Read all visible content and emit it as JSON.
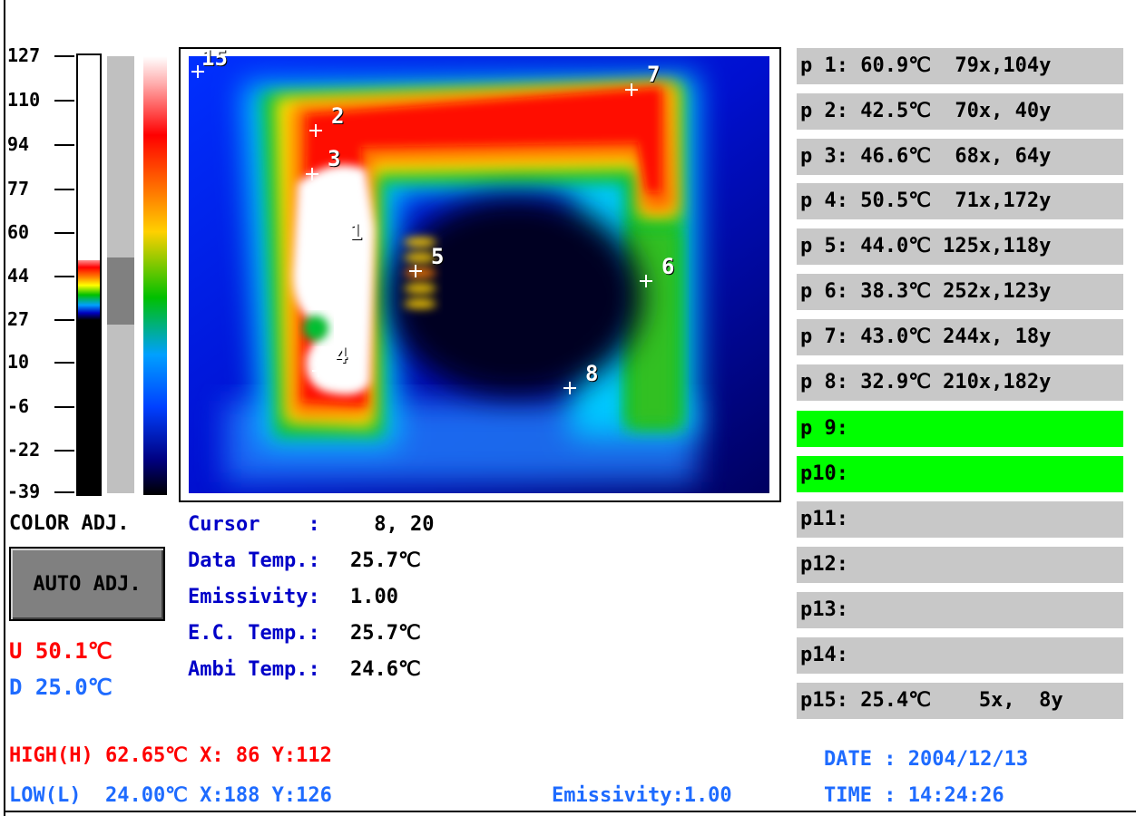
{
  "scale": {
    "ticks": [
      "127",
      "110",
      "94",
      "77",
      "60",
      "44",
      "27",
      "10",
      "-6",
      "-22",
      "-39"
    ]
  },
  "left_panel": {
    "color_adj_label": "COLOR ADJ.",
    "auto_adj_label": "AUTO ADJ.",
    "upper": "U 50.1℃",
    "lower": "D 25.0℃"
  },
  "thermal_points": [
    "1",
    "2",
    "3",
    "4",
    "5",
    "6",
    "7",
    "8",
    "15"
  ],
  "info": {
    "cursor_label": "Cursor    :",
    "cursor_value": " 8, 20",
    "data_temp_label": "Data Temp.:",
    "data_temp_value": "25.7℃",
    "emissivity_label": "Emissivity:",
    "emissivity_value": "1.00",
    "ec_temp_label": "E.C. Temp.:",
    "ec_temp_value": "25.7℃",
    "ambi_temp_label": "Ambi Temp.:",
    "ambi_temp_value": "24.6℃"
  },
  "points": [
    {
      "label": "p 1: 60.9℃  79x,104y",
      "active": false
    },
    {
      "label": "p 2: 42.5℃  70x, 40y",
      "active": false
    },
    {
      "label": "p 3: 46.6℃  68x, 64y",
      "active": false
    },
    {
      "label": "p 4: 50.5℃  71x,172y",
      "active": false
    },
    {
      "label": "p 5: 44.0℃ 125x,118y",
      "active": false
    },
    {
      "label": "p 6: 38.3℃ 252x,123y",
      "active": false
    },
    {
      "label": "p 7: 43.0℃ 244x, 18y",
      "active": false
    },
    {
      "label": "p 8: 32.9℃ 210x,182y",
      "active": false
    },
    {
      "label": "p 9:",
      "active": true
    },
    {
      "label": "p10:",
      "active": true
    },
    {
      "label": "p11:",
      "active": false
    },
    {
      "label": "p12:",
      "active": false
    },
    {
      "label": "p13:",
      "active": false
    },
    {
      "label": "p14:",
      "active": false
    },
    {
      "label": "p15: 25.4℃    5x,  8y",
      "active": false
    }
  ],
  "footer": {
    "high": "HIGH(H) 62.65℃ X: 86 Y:112",
    "low": "LOW(L)  24.00℃ X:188 Y:126",
    "emissivity": "Emissivity:1.00",
    "date": "DATE : 2004/12/13",
    "time": "TIME : 14:24:26"
  },
  "colors": {
    "red": "#ff0000",
    "blue": "#1e6bff",
    "navy": "#0000c8",
    "active_row": "#00ff00",
    "inactive_row": "#c8c8c8"
  }
}
